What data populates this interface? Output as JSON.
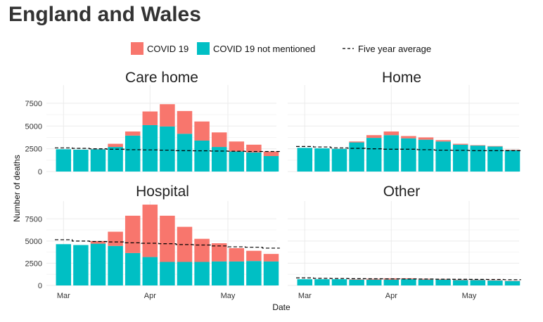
{
  "title": "England and Wales",
  "colors": {
    "covid": "#F8766D",
    "not_mentioned": "#00BFC4",
    "average": "#000000"
  },
  "chart_data": {
    "type": "bar",
    "xlabel": "Date",
    "ylabel": "Number of deaths",
    "ylim": [
      0,
      9500
    ],
    "yticks": [
      0,
      2500,
      5000,
      7500
    ],
    "xticks": [
      {
        "label": "Mar",
        "index": 0
      },
      {
        "label": "Apr",
        "index": 5
      },
      {
        "label": "May",
        "index": 9.5
      }
    ],
    "grid": true,
    "legend": {
      "position": "top",
      "items": [
        {
          "label": "COVID 19",
          "kind": "fill",
          "color": "#F8766D"
        },
        {
          "label": "COVID 19 not mentioned",
          "kind": "fill",
          "color": "#00BFC4"
        },
        {
          "label": "Five year average",
          "kind": "dashed",
          "color": "#000000"
        }
      ]
    },
    "panels": [
      {
        "name": "Care home",
        "not_mentioned": [
          2450,
          2400,
          2450,
          2700,
          3950,
          5100,
          4950,
          4150,
          3400,
          2700,
          2200,
          2100,
          1700
        ],
        "covid": [
          0,
          0,
          30,
          350,
          450,
          1500,
          2450,
          2500,
          2100,
          1600,
          1100,
          850,
          500
        ],
        "average": [
          2600,
          2550,
          2500,
          2450,
          2400,
          2380,
          2350,
          2300,
          2280,
          2250,
          2230,
          2200,
          2200
        ]
      },
      {
        "name": "Home",
        "not_mentioned": [
          2600,
          2550,
          2500,
          3200,
          3700,
          4000,
          3650,
          3500,
          3300,
          2950,
          2850,
          2750,
          2350
        ],
        "covid": [
          0,
          0,
          10,
          100,
          300,
          400,
          250,
          250,
          150,
          100,
          50,
          50,
          50
        ],
        "average": [
          2750,
          2700,
          2600,
          2550,
          2500,
          2450,
          2450,
          2400,
          2350,
          2330,
          2300,
          2300,
          2300
        ]
      },
      {
        "name": "Hospital",
        "not_mentioned": [
          4650,
          4550,
          4700,
          4450,
          3650,
          3200,
          2650,
          2650,
          2650,
          2700,
          2700,
          2750,
          2700
        ],
        "covid": [
          0,
          0,
          300,
          1600,
          4200,
          5900,
          5200,
          3950,
          2600,
          2050,
          1500,
          1150,
          850
        ],
        "average": [
          5150,
          5000,
          4950,
          4900,
          4800,
          4750,
          4700,
          4600,
          4550,
          4450,
          4350,
          4300,
          4200
        ]
      },
      {
        "name": "Other",
        "not_mentioned": [
          700,
          700,
          700,
          650,
          650,
          650,
          700,
          650,
          650,
          600,
          600,
          550,
          500
        ],
        "covid": [
          0,
          0,
          0,
          50,
          100,
          150,
          100,
          100,
          80,
          60,
          50,
          40,
          30
        ],
        "average": [
          850,
          800,
          780,
          760,
          750,
          740,
          730,
          720,
          700,
          690,
          680,
          670,
          650
        ]
      }
    ]
  }
}
